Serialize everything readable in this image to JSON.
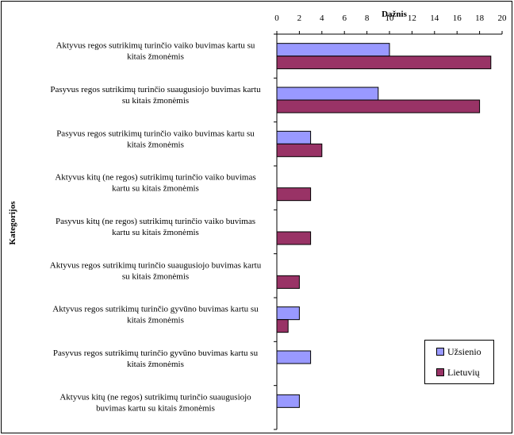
{
  "chart_data": {
    "type": "bar",
    "orientation": "horizontal",
    "xlabel": "Dažnis",
    "ylabel": "Kategorijos",
    "xlim": [
      0,
      20
    ],
    "xticks": [
      "0",
      "2",
      "4",
      "6",
      "8",
      "10",
      "12",
      "14",
      "16",
      "18",
      "20"
    ],
    "x_axis_position": "top",
    "grid": false,
    "legend_position": "bottom-right",
    "categories": [
      [
        "Aktyvus regos sutrikimų turinčio vaiko buvimas kartu su",
        "kitais žmonėmis"
      ],
      [
        "Pasyvus regos sutrikimų turinčio suaugusiojo buvimas kartu",
        "su kitais žmonėmis"
      ],
      [
        "Pasyvus  regos sutrikimų turinčio vaiko buvimas kartu su",
        "kitais žmonėmis"
      ],
      [
        "Aktyvus kitų (ne regos) sutrikimų turinčio vaiko buvimas",
        "kartu su kitais žmonėmis"
      ],
      [
        "Pasyvus kitų (ne regos) sutrikimų turinčio vaiko buvimas",
        "kartu su kitais žmonėmis"
      ],
      [
        "Aktyvus regos sutrikimų turinčio suaugusiojo buvimas kartu",
        "su kitais žmonėmis"
      ],
      [
        "Aktyvus regos sutrikimų turinčio gyvūno buvimas kartu su",
        "kitais žmonėmis"
      ],
      [
        "Pasyvus  regos sutrikimų turinčio gyvūno buvimas kartu su",
        "kitais žmonėmis"
      ],
      [
        "Aktyvus kitų (ne regos) sutrikimų turinčio suaugusiojo",
        "buvimas kartu su kitais žmonėmis"
      ]
    ],
    "series": [
      {
        "name": "Užsienio",
        "color": "#9999ff",
        "values": [
          10,
          9,
          3,
          0,
          0,
          0,
          2,
          3,
          2
        ]
      },
      {
        "name": "Lietuvių",
        "color": "#993366",
        "values": [
          19,
          18,
          4,
          3,
          3,
          2,
          1,
          0,
          0
        ]
      }
    ]
  }
}
